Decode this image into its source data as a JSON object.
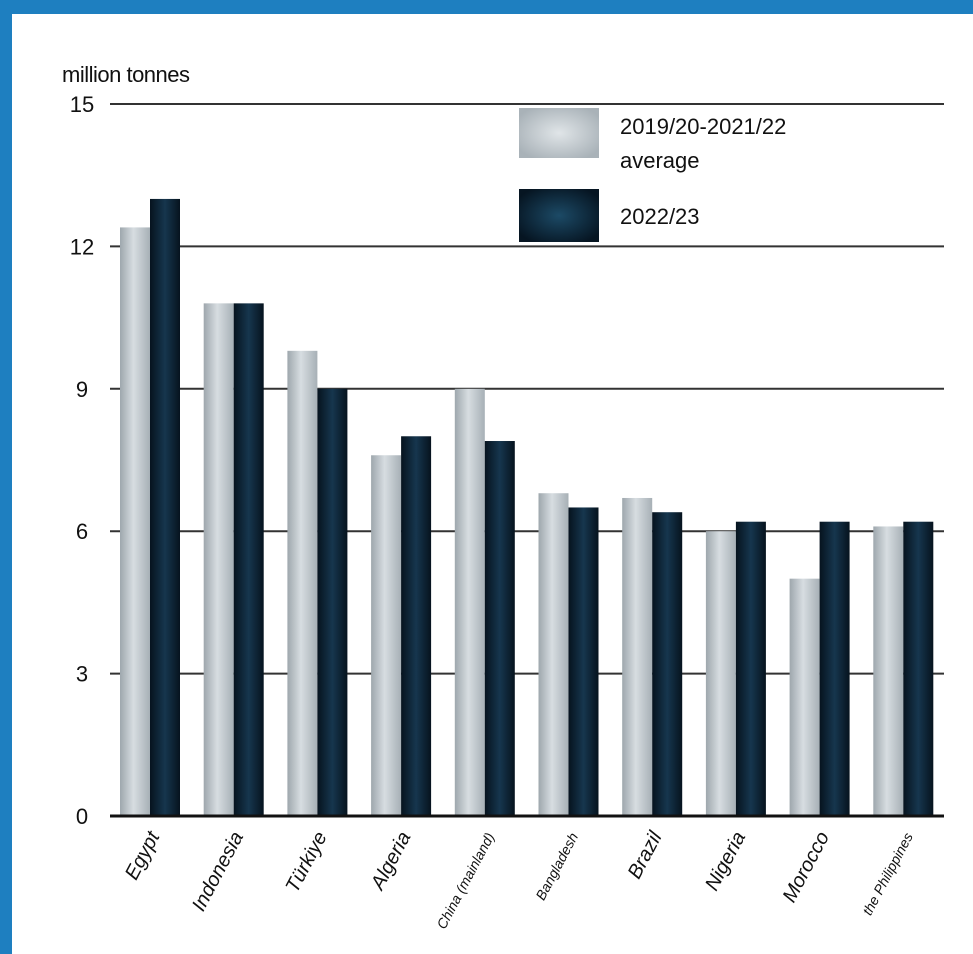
{
  "chart_data": {
    "type": "bar",
    "ylabel": "million tonnes",
    "ylim": [
      0,
      15
    ],
    "yticks": [
      0,
      3,
      6,
      9,
      12,
      15
    ],
    "grid": true,
    "legend_position": "top-right",
    "categories": [
      "Egypt",
      "Indonesia",
      "Türkiye",
      "Algeria",
      "China (mainland)",
      "Bangladesh",
      "Brazil",
      "Nigeria",
      "Morocco",
      "the Philippines"
    ],
    "series": [
      {
        "name": "2019/20-2021/22 average",
        "color": "#b4bcc2",
        "values": [
          12.4,
          10.8,
          9.8,
          7.6,
          9.0,
          6.8,
          6.7,
          6.0,
          5.0,
          6.1
        ]
      },
      {
        "name": "2022/23",
        "color": "#0b2438",
        "values": [
          13.0,
          10.8,
          9.0,
          8.0,
          7.9,
          6.5,
          6.4,
          6.2,
          6.2,
          6.2
        ]
      }
    ]
  }
}
